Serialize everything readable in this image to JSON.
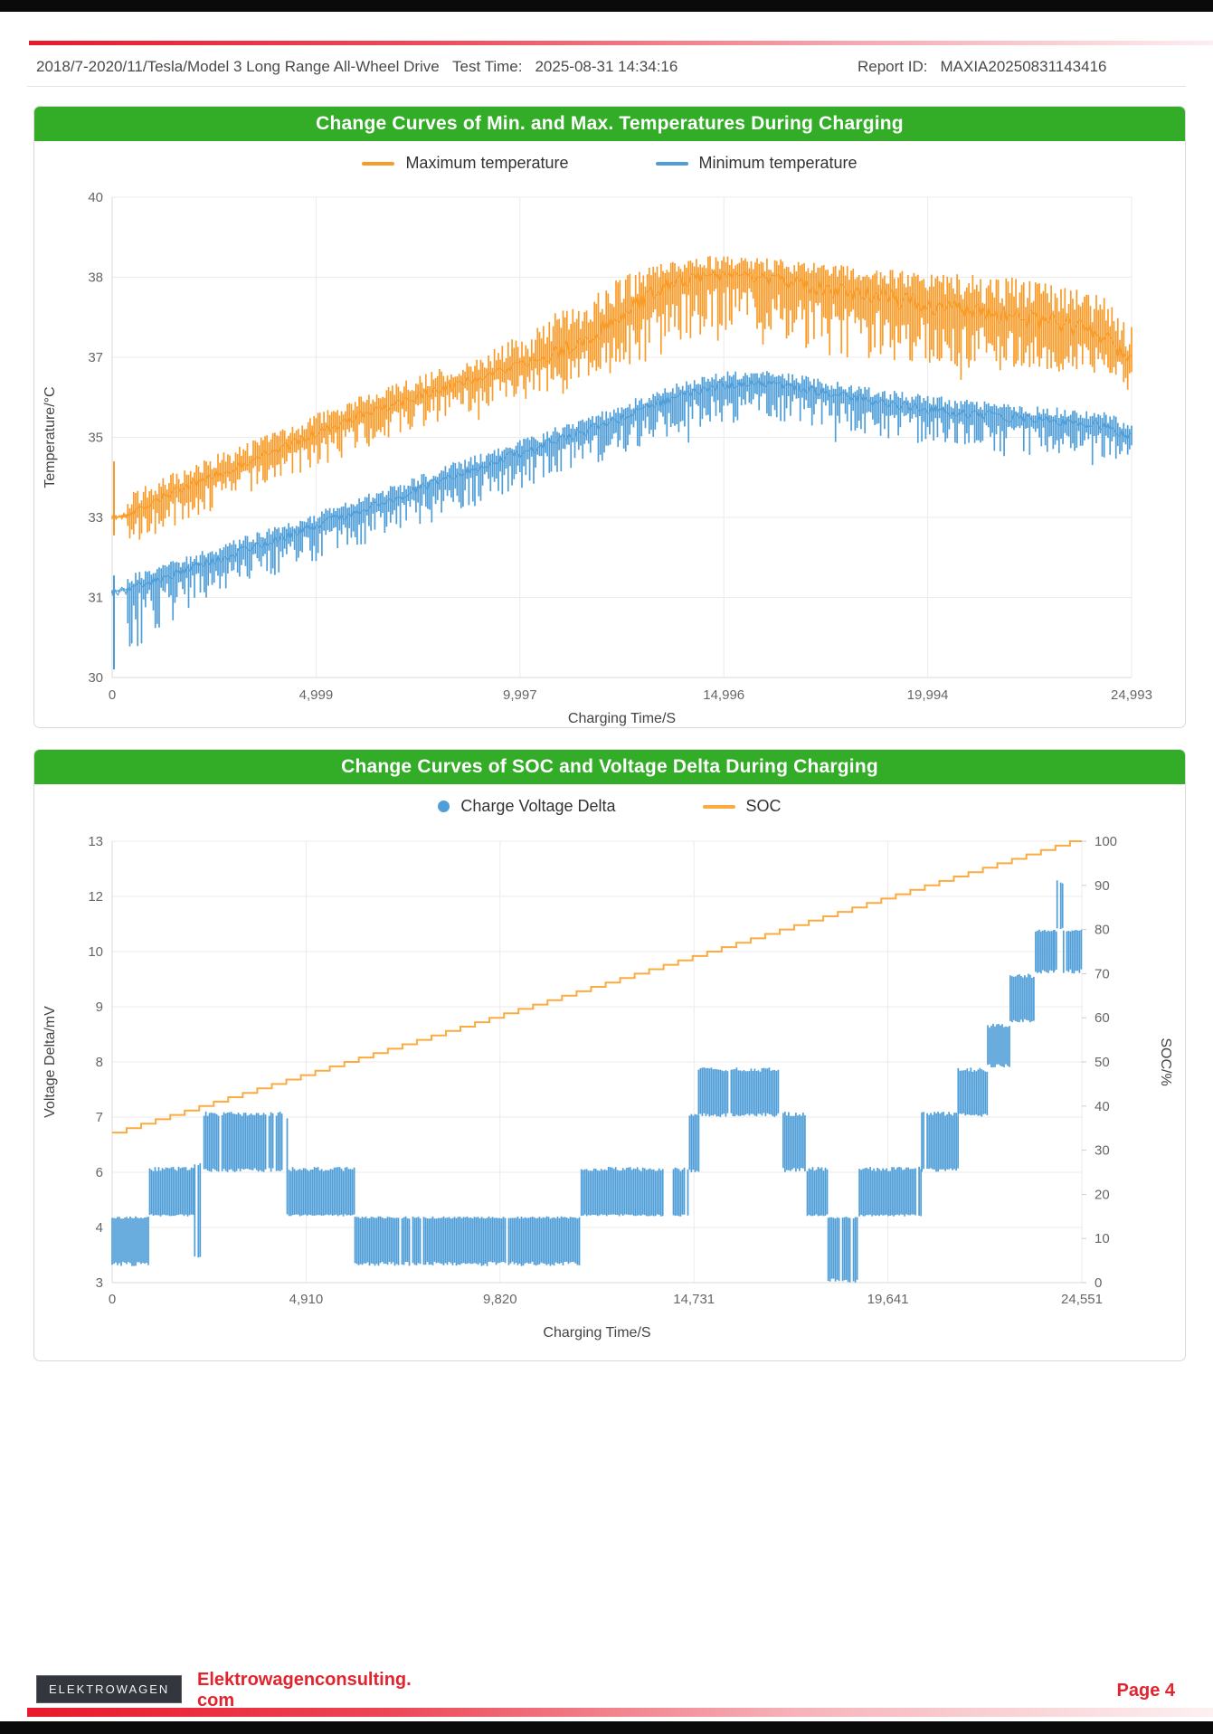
{
  "header": {
    "left": "2018/7-2020/11/Tesla/Model 3 Long Range All-Wheel Drive",
    "test_time_label": "Test Time:",
    "test_time_value": "2025-08-31 14:34:16",
    "report_id_label": "Report ID:",
    "report_id_value": "MAXIA20250831143416"
  },
  "footer": {
    "badge": "ELEKTROWAGEN",
    "site_line1": "Elektrowagenconsulting.",
    "site_line2": "com",
    "page_label": "Page 4"
  },
  "colors": {
    "banner_green": "#33ad27",
    "max_temp_orange": "#f99b28",
    "min_temp_blue": "#4f9ed8",
    "soc_orange": "#fbab40",
    "voltage_blue": "#4f9ed8",
    "accent_red": "#e8192c",
    "grid": "#ebebeb",
    "axis": "#d9d9d9",
    "tick_text": "#666666",
    "axis_title_text": "#444444"
  },
  "chart_data": [
    {
      "type": "line",
      "title": "Change Curves of Min. and Max. Temperatures During Charging",
      "xlabel": "Charging Time/S",
      "ylabel": "Temperature/°C",
      "x_max": 24993,
      "x_ticks": [
        "0",
        "4,999",
        "9,997",
        "14,996",
        "19,994",
        "24,993"
      ],
      "y_ticks": [
        "40",
        "38",
        "37",
        "35",
        "33",
        "31",
        "30"
      ],
      "y_tick_values": [
        40,
        38,
        37,
        35,
        33,
        31,
        30
      ],
      "grid": true,
      "legend_position": "top-center",
      "legend": [
        {
          "label": "Maximum temperature",
          "color": "#f99b28",
          "marker": "line"
        },
        {
          "label": "Minimum temperature",
          "color": "#4f9ed8",
          "marker": "line"
        }
      ],
      "series": [
        {
          "name": "Maximum temperature",
          "color": "#f99b28",
          "start_spike": [
            32.55,
            34.4
          ],
          "flat_until_s": 380,
          "band_up": 0.5,
          "band_down": 0.85,
          "trend": [
            [
              0,
              33.0
            ],
            [
              350,
              33.05
            ],
            [
              1000,
              33.4
            ],
            [
              2000,
              33.85
            ],
            [
              3000,
              34.25
            ],
            [
              4000,
              34.65
            ],
            [
              5000,
              35.1
            ],
            [
              6000,
              35.5
            ],
            [
              7000,
              35.85
            ],
            [
              8000,
              36.2
            ],
            [
              9000,
              36.5
            ],
            [
              10000,
              36.8
            ],
            [
              11000,
              37.1
            ],
            [
              12000,
              37.35
            ],
            [
              13000,
              37.7
            ],
            [
              13800,
              37.95
            ],
            [
              14500,
              38.05
            ],
            [
              15500,
              38.05
            ],
            [
              16500,
              37.95
            ],
            [
              17500,
              37.85
            ],
            [
              19000,
              37.75
            ],
            [
              20500,
              37.6
            ],
            [
              22000,
              37.5
            ],
            [
              23500,
              37.4
            ],
            [
              24400,
              37.25
            ],
            [
              24800,
              37.0
            ],
            [
              24993,
              36.9
            ]
          ]
        },
        {
          "name": "Minimum temperature",
          "color": "#4f9ed8",
          "start_spike": [
            30.1,
            31.55
          ],
          "flat_until_s": 380,
          "band_up": 0.35,
          "band_down": 0.9,
          "trend": [
            [
              0,
              31.15
            ],
            [
              350,
              31.2
            ],
            [
              1000,
              31.4
            ],
            [
              2000,
              31.75
            ],
            [
              3000,
              32.1
            ],
            [
              4000,
              32.45
            ],
            [
              5000,
              32.8
            ],
            [
              6000,
              33.15
            ],
            [
              7000,
              33.5
            ],
            [
              8000,
              33.9
            ],
            [
              9000,
              34.25
            ],
            [
              10000,
              34.6
            ],
            [
              11000,
              34.95
            ],
            [
              12000,
              35.3
            ],
            [
              13000,
              35.7
            ],
            [
              14000,
              36.05
            ],
            [
              15000,
              36.3
            ],
            [
              15800,
              36.35
            ],
            [
              16800,
              36.25
            ],
            [
              17800,
              36.05
            ],
            [
              19000,
              35.85
            ],
            [
              20500,
              35.65
            ],
            [
              22000,
              35.5
            ],
            [
              23200,
              35.4
            ],
            [
              24300,
              35.3
            ],
            [
              24700,
              35.15
            ],
            [
              24993,
              35.0
            ]
          ]
        }
      ]
    },
    {
      "type": "mixed",
      "title": "Change Curves of SOC and Voltage Delta During Charging",
      "xlabel": "Charging Time/S",
      "ylabel_left": "Voltage Delta/mV",
      "ylabel_right": "SOC/%",
      "x_max": 24551,
      "x_ticks": [
        "0",
        "4,910",
        "9,820",
        "14,731",
        "19,641",
        "24,551"
      ],
      "y_ticks_left": [
        "13",
        "12",
        "10",
        "9",
        "8",
        "7",
        "6",
        "4",
        "3"
      ],
      "y_tick_values_left": [
        13,
        12,
        10,
        9,
        8,
        7,
        6,
        4,
        3
      ],
      "y_ticks_right": [
        "100",
        "90",
        "80",
        "70",
        "60",
        "50",
        "40",
        "30",
        "20",
        "10",
        "0"
      ],
      "y_right_range": [
        0,
        100
      ],
      "grid": true,
      "legend_position": "top-center",
      "legend": [
        {
          "label": "Charge Voltage Delta",
          "color": "#4f9ed8",
          "marker": "dot"
        },
        {
          "label": "SOC",
          "color": "#fbab40",
          "marker": "line"
        }
      ],
      "voltage_delta_segments_comment": "each item: [t_start_s, t_end_s, low_mV, high_mV, density]",
      "voltage_delta_segments": [
        [
          0,
          920,
          3.3,
          4.4,
          1
        ],
        [
          950,
          2080,
          4.4,
          6.1,
          1
        ],
        [
          2090,
          2270,
          3.4,
          6.2,
          0.35
        ],
        [
          2280,
          4330,
          6.0,
          7.1,
          1
        ],
        [
          4340,
          4470,
          4.4,
          7.0,
          0.3
        ],
        [
          4480,
          6150,
          4.4,
          6.1,
          1
        ],
        [
          6150,
          11850,
          3.3,
          4.4,
          1
        ],
        [
          11880,
          13960,
          4.4,
          6.1,
          1
        ],
        [
          13990,
          14190,
          3.0,
          4.4,
          0.5
        ],
        [
          14210,
          14620,
          4.4,
          6.1,
          1
        ],
        [
          14620,
          14850,
          6.0,
          7.1,
          1
        ],
        [
          14850,
          16880,
          7.0,
          7.9,
          1
        ],
        [
          16990,
          17580,
          6.0,
          7.1,
          1
        ],
        [
          17600,
          18110,
          4.4,
          6.1,
          1
        ],
        [
          18130,
          18900,
          3.0,
          4.4,
          0.6
        ],
        [
          18920,
          20500,
          4.4,
          6.1,
          1
        ],
        [
          20500,
          21420,
          6.0,
          7.1,
          1
        ],
        [
          21420,
          22170,
          7.0,
          7.9,
          1
        ],
        [
          22170,
          22740,
          7.9,
          8.7,
          1
        ],
        [
          22740,
          23380,
          8.7,
          9.6,
          1
        ],
        [
          23380,
          23860,
          9.6,
          10.8,
          1
        ],
        [
          23880,
          24150,
          10.8,
          12.3,
          0.3
        ],
        [
          23860,
          24160,
          9.6,
          10.8,
          0.8
        ],
        [
          24170,
          24551,
          9.6,
          10.8,
          1
        ]
      ],
      "soc": {
        "start_pct": 34,
        "end_pct": 100,
        "step_pct": 1,
        "t_reach_full_s": 24250,
        "t_end_s": 24551,
        "color": "#fbab40"
      }
    }
  ]
}
